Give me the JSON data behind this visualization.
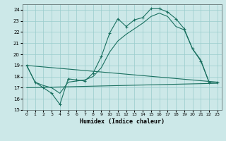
{
  "xlabel": "Humidex (Indice chaleur)",
  "background_color": "#cce8e8",
  "grid_color": "#99cccc",
  "line_color": "#1a7060",
  "xlim": [
    -0.5,
    23.5
  ],
  "ylim": [
    15,
    24.5
  ],
  "yticks": [
    15,
    16,
    17,
    18,
    19,
    20,
    21,
    22,
    23,
    24
  ],
  "xticks": [
    0,
    1,
    2,
    3,
    4,
    5,
    6,
    7,
    8,
    9,
    10,
    11,
    12,
    13,
    14,
    15,
    16,
    17,
    18,
    19,
    20,
    21,
    22,
    23
  ],
  "line1_x": [
    0,
    1,
    2,
    3,
    4,
    5,
    6,
    7,
    8,
    9,
    10,
    11,
    12,
    13,
    14,
    15,
    16,
    17,
    18,
    19,
    20,
    21,
    22,
    23
  ],
  "line1_y": [
    19.0,
    17.5,
    17.0,
    16.5,
    15.5,
    17.8,
    17.7,
    17.6,
    18.3,
    19.8,
    21.9,
    23.2,
    22.5,
    23.1,
    23.3,
    24.1,
    24.1,
    23.8,
    23.2,
    22.3,
    20.5,
    19.4,
    17.5,
    17.5
  ],
  "line2_x": [
    0,
    1,
    2,
    3,
    4,
    5,
    6,
    7,
    8,
    9,
    10,
    11,
    12,
    13,
    14,
    15,
    16,
    17,
    18,
    19,
    20,
    21,
    22,
    23
  ],
  "line2_y": [
    19.0,
    17.5,
    17.2,
    17.0,
    16.5,
    17.5,
    17.6,
    17.7,
    18.0,
    18.8,
    20.2,
    21.2,
    21.8,
    22.3,
    22.8,
    23.4,
    23.7,
    23.4,
    22.5,
    22.2,
    20.5,
    19.5,
    17.5,
    17.5
  ],
  "line3_x": [
    0,
    23
  ],
  "line3_y": [
    17.0,
    17.4
  ],
  "line4_x": [
    0,
    23
  ],
  "line4_y": [
    19.0,
    17.5
  ]
}
